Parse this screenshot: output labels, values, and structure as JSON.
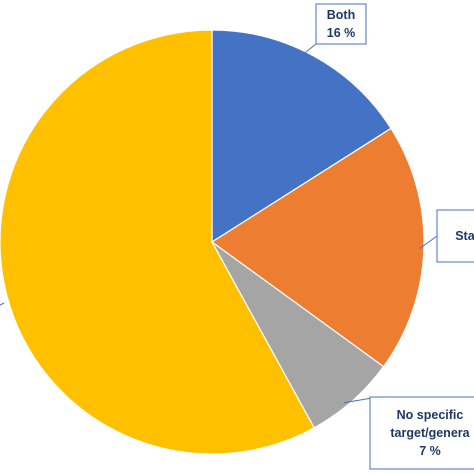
{
  "chart_data": {
    "type": "pie",
    "slices": [
      {
        "label_lines": [
          "Both",
          "16 %"
        ],
        "value": 16,
        "color": "#4472c4"
      },
      {
        "label_lines": [
          "Stat"
        ],
        "value": 19,
        "color": "#ed7d31"
      },
      {
        "label_lines": [
          "No specific",
          "target/genera",
          "7 %"
        ],
        "value": 7,
        "color": "#a5a5a5"
      },
      {
        "label_lines": [],
        "value": 58,
        "color": "#ffc000"
      }
    ],
    "start_angle_deg": 0,
    "direction": "clockwise",
    "legend": "none"
  }
}
